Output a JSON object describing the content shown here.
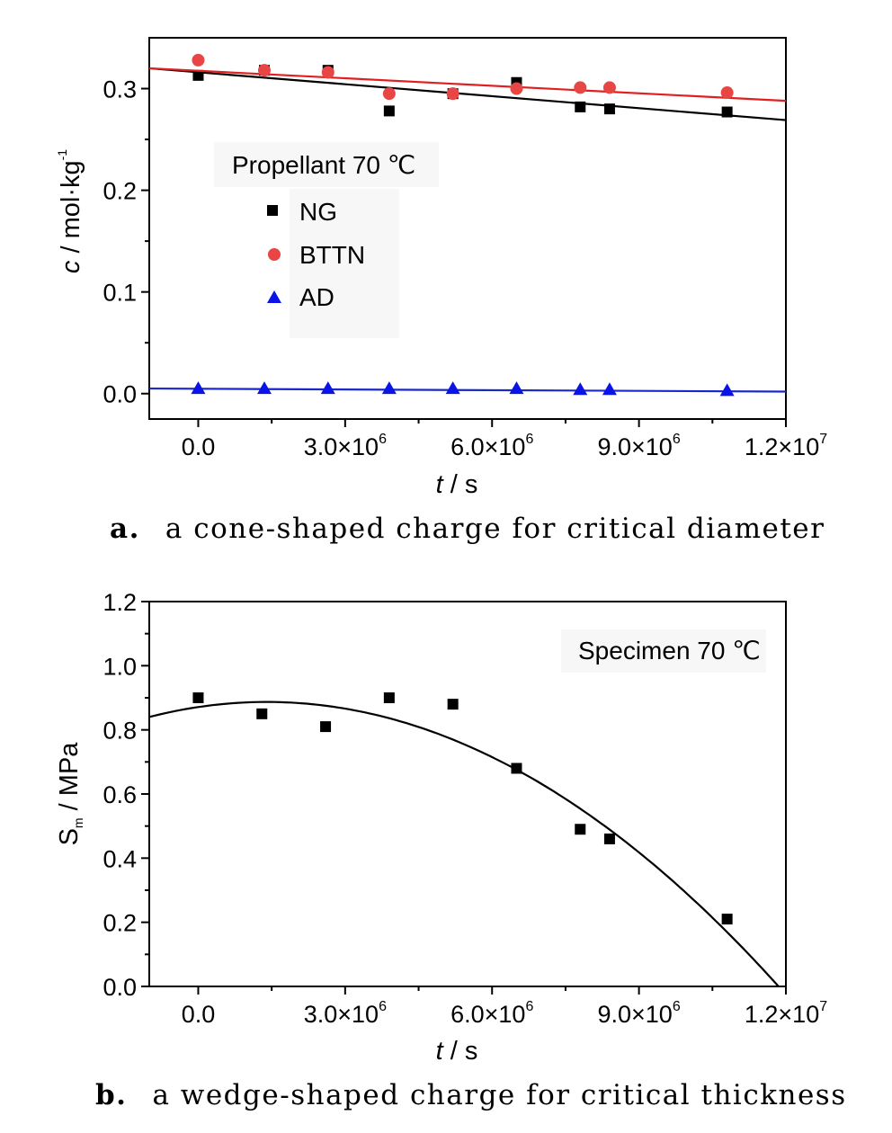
{
  "chart_data": [
    {
      "type": "scatter",
      "legend_title": "Propellant 70 ℃",
      "legend_placement": "center-left",
      "xlabel_italic": "t",
      "xlabel_rest": " / s",
      "ylabel_italic": "c",
      "ylabel_rest": " / mol·kg",
      "ylabel_sup": "-1",
      "xlim": [
        -1000000,
        12000000
      ],
      "ylim": [
        -0.025,
        0.35
      ],
      "xticks": [
        0,
        3000000,
        6000000,
        9000000,
        12000000
      ],
      "xtick_labels": [
        {
          "mant": "0.0",
          "exp": ""
        },
        {
          "mant": "3.0×10",
          "exp": "6"
        },
        {
          "mant": "6.0×10",
          "exp": "6"
        },
        {
          "mant": "9.0×10",
          "exp": "6"
        },
        {
          "mant": "1.2×10",
          "exp": "7"
        }
      ],
      "yticks": [
        0.0,
        0.1,
        0.2,
        0.3
      ],
      "ytick_labels": [
        "0.0",
        "0.1",
        "0.2",
        "0.3"
      ],
      "series": [
        {
          "name": "NG",
          "marker": "square",
          "color": "#000000",
          "x": [
            0,
            1350000,
            2650000,
            3900000,
            5200000,
            6500000,
            7800000,
            8400000,
            10800000
          ],
          "y": [
            0.313,
            0.318,
            0.318,
            0.278,
            0.295,
            0.306,
            0.282,
            0.28,
            0.277
          ],
          "fit": {
            "x": [
              -1000000,
              12000000
            ],
            "y": [
              0.32,
              0.269
            ],
            "color": "#000000"
          }
        },
        {
          "name": "BTTN",
          "marker": "circle",
          "color": "#e84545",
          "x": [
            0,
            1350000,
            2650000,
            3900000,
            5200000,
            6500000,
            7800000,
            8400000,
            10800000
          ],
          "y": [
            0.328,
            0.318,
            0.316,
            0.295,
            0.295,
            0.3,
            0.301,
            0.301,
            0.296
          ],
          "fit": {
            "x": [
              -1000000,
              12000000
            ],
            "y": [
              0.32,
              0.288
            ],
            "color": "#e02020"
          }
        },
        {
          "name": "AD",
          "marker": "triangle",
          "color": "#0a14e6",
          "x": [
            0,
            1350000,
            2650000,
            3900000,
            5200000,
            6500000,
            7800000,
            8400000,
            10800000
          ],
          "y": [
            0.005,
            0.005,
            0.005,
            0.005,
            0.005,
            0.005,
            0.004,
            0.004,
            0.003
          ],
          "fit": {
            "x": [
              -1000000,
              12000000
            ],
            "y": [
              0.005,
              0.002
            ],
            "color": "#1a28c8"
          }
        }
      ]
    },
    {
      "type": "scatter",
      "legend_title": "Specimen 70 ℃",
      "legend_placement": "top-right",
      "xlabel_italic": "t",
      "xlabel_rest": " / s",
      "ylabel_main": "S",
      "ylabel_sub": "m",
      "ylabel_rest": " / MPa",
      "xlim": [
        -1000000,
        12000000
      ],
      "ylim": [
        0.0,
        1.2
      ],
      "xticks": [
        0,
        3000000,
        6000000,
        9000000,
        12000000
      ],
      "xtick_labels": [
        {
          "mant": "0.0",
          "exp": ""
        },
        {
          "mant": "3.0×10",
          "exp": "6"
        },
        {
          "mant": "6.0×10",
          "exp": "6"
        },
        {
          "mant": "9.0×10",
          "exp": "6"
        },
        {
          "mant": "1.2×10",
          "exp": "7"
        }
      ],
      "yticks": [
        0.0,
        0.2,
        0.4,
        0.6,
        0.8,
        1.0,
        1.2
      ],
      "ytick_labels": [
        "0.0",
        "0.2",
        "0.4",
        "0.6",
        "0.8",
        "1.0",
        "1.2"
      ],
      "series": [
        {
          "marker": "square",
          "color": "#000000",
          "x": [
            0,
            1300000,
            2600000,
            3900000,
            5200000,
            6500000,
            7800000,
            8400000,
            10800000
          ],
          "y": [
            0.9,
            0.85,
            0.81,
            0.9,
            0.88,
            0.68,
            0.49,
            0.46,
            0.21
          ],
          "fit": {
            "type": "quadratic",
            "vertex_x": 1400000,
            "vertex_y": 0.887,
            "root_x": 11850000,
            "color": "#000000"
          }
        }
      ]
    }
  ],
  "captions": [
    {
      "letter": "a.",
      "text": "a cone-shaped charge for critical diameter"
    },
    {
      "letter": "b.",
      "text": "a wedge-shaped charge for critical thickness"
    }
  ]
}
